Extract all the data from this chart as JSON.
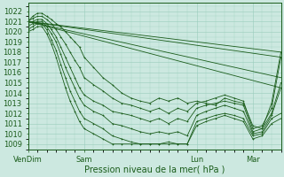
{
  "bg_color": "#cce8e0",
  "grid_color": "#99ccbb",
  "line_color": "#1a5c1a",
  "xlabel": "Pression niveau de la mer( hPa )",
  "xlabel_fontsize": 7,
  "tick_fontsize": 6,
  "ylim": [
    1008.5,
    1022.8
  ],
  "yticks": [
    1009,
    1010,
    1011,
    1012,
    1013,
    1014,
    1015,
    1016,
    1017,
    1018,
    1019,
    1020,
    1021,
    1022
  ],
  "xtick_labels": [
    "VenDim",
    "Sam",
    "Lun",
    "Mar"
  ],
  "xtick_positions": [
    0,
    48,
    144,
    192
  ],
  "xlim": [
    0,
    216
  ],
  "straight_lines": [
    {
      "x": [
        0,
        216
      ],
      "y": [
        1021.0,
        1018.0
      ]
    },
    {
      "x": [
        0,
        216
      ],
      "y": [
        1021.0,
        1017.5
      ]
    },
    {
      "x": [
        0,
        216
      ],
      "y": [
        1021.0,
        1015.5
      ]
    },
    {
      "x": [
        0,
        216
      ],
      "y": [
        1021.0,
        1014.5
      ]
    }
  ],
  "detail_lines": [
    {
      "x": [
        0,
        4,
        8,
        12,
        16,
        20,
        24,
        28,
        32,
        36,
        40,
        44,
        48,
        56,
        64,
        72,
        80,
        88,
        96,
        104,
        112,
        120,
        128,
        136,
        144,
        152,
        160,
        168,
        176,
        184,
        192,
        200,
        208,
        216
      ],
      "y": [
        1021.0,
        1021.5,
        1021.8,
        1021.8,
        1021.5,
        1021.2,
        1020.8,
        1020.5,
        1020.0,
        1019.5,
        1019.0,
        1018.5,
        1017.5,
        1016.5,
        1015.5,
        1014.8,
        1014.0,
        1013.5,
        1013.2,
        1013.0,
        1013.5,
        1013.2,
        1013.5,
        1013.0,
        1013.2,
        1013.0,
        1012.8,
        1013.5,
        1013.2,
        1013.0,
        1010.8,
        1010.5,
        1013.0,
        1018.0
      ]
    },
    {
      "x": [
        0,
        4,
        8,
        12,
        16,
        20,
        24,
        28,
        32,
        36,
        40,
        44,
        48,
        56,
        64,
        72,
        80,
        88,
        96,
        104,
        112,
        120,
        128,
        136,
        144,
        152,
        160,
        168,
        176,
        184,
        192,
        200,
        208,
        216
      ],
      "y": [
        1021.0,
        1021.3,
        1021.5,
        1021.5,
        1021.2,
        1020.8,
        1020.2,
        1019.5,
        1018.8,
        1018.0,
        1017.2,
        1016.5,
        1015.5,
        1014.8,
        1014.2,
        1013.5,
        1013.0,
        1012.8,
        1012.5,
        1012.2,
        1012.5,
        1012.0,
        1012.5,
        1012.2,
        1013.0,
        1013.2,
        1013.5,
        1013.8,
        1013.5,
        1013.2,
        1010.5,
        1010.8,
        1012.5,
        1017.5
      ]
    },
    {
      "x": [
        0,
        4,
        8,
        12,
        16,
        20,
        24,
        28,
        32,
        36,
        40,
        44,
        48,
        56,
        64,
        72,
        80,
        88,
        96,
        104,
        112,
        120,
        128,
        136,
        144,
        152,
        160,
        168,
        176,
        184,
        192,
        200,
        208,
        216
      ],
      "y": [
        1020.8,
        1021.0,
        1021.2,
        1021.2,
        1020.8,
        1020.2,
        1019.5,
        1018.5,
        1017.5,
        1016.5,
        1015.5,
        1014.5,
        1013.8,
        1013.2,
        1012.8,
        1012.2,
        1012.0,
        1011.8,
        1011.5,
        1011.2,
        1011.5,
        1011.0,
        1011.5,
        1011.2,
        1012.5,
        1012.8,
        1013.0,
        1013.2,
        1013.0,
        1012.8,
        1010.2,
        1010.5,
        1012.0,
        1015.0
      ]
    },
    {
      "x": [
        0,
        4,
        8,
        12,
        16,
        20,
        24,
        28,
        32,
        36,
        40,
        44,
        48,
        56,
        64,
        72,
        80,
        88,
        96,
        104,
        112,
        120,
        128,
        136,
        144,
        152,
        160,
        168,
        176,
        184,
        192,
        200,
        208,
        216
      ],
      "y": [
        1020.5,
        1020.8,
        1021.0,
        1021.0,
        1020.5,
        1019.8,
        1019.0,
        1017.8,
        1016.5,
        1015.5,
        1014.5,
        1013.5,
        1012.8,
        1012.2,
        1011.8,
        1011.0,
        1010.8,
        1010.5,
        1010.2,
        1010.0,
        1010.2,
        1010.0,
        1010.2,
        1009.8,
        1011.8,
        1012.2,
        1012.5,
        1012.8,
        1012.5,
        1012.2,
        1010.0,
        1010.2,
        1011.8,
        1014.5
      ]
    },
    {
      "x": [
        0,
        4,
        8,
        12,
        16,
        20,
        24,
        28,
        32,
        36,
        40,
        44,
        48,
        56,
        64,
        72,
        80,
        88,
        96,
        104,
        112,
        120,
        128,
        136,
        144,
        152,
        160,
        168,
        176,
        184,
        192,
        200,
        208,
        216
      ],
      "y": [
        1020.2,
        1020.5,
        1020.8,
        1020.8,
        1020.2,
        1019.2,
        1018.2,
        1016.8,
        1015.5,
        1014.2,
        1013.2,
        1012.2,
        1011.5,
        1011.0,
        1010.5,
        1009.8,
        1009.5,
        1009.2,
        1009.0,
        1009.0,
        1009.0,
        1009.2,
        1009.0,
        1009.0,
        1011.2,
        1011.5,
        1011.8,
        1012.0,
        1011.8,
        1011.5,
        1009.8,
        1010.0,
        1011.5,
        1012.0
      ]
    },
    {
      "x": [
        0,
        4,
        8,
        12,
        16,
        20,
        24,
        28,
        32,
        36,
        40,
        44,
        48,
        56,
        64,
        72,
        80,
        88,
        96,
        104,
        112,
        120,
        128,
        136,
        144,
        152,
        160,
        168,
        176,
        184,
        192,
        200,
        208,
        216
      ],
      "y": [
        1020.0,
        1020.2,
        1020.5,
        1020.5,
        1019.8,
        1018.8,
        1017.5,
        1016.0,
        1014.5,
        1013.2,
        1012.2,
        1011.2,
        1010.5,
        1010.0,
        1009.5,
        1009.0,
        1009.0,
        1009.0,
        1009.0,
        1009.0,
        1009.0,
        1009.0,
        1009.0,
        1009.0,
        1010.8,
        1011.2,
        1011.5,
        1011.8,
        1011.5,
        1011.2,
        1009.5,
        1009.8,
        1011.0,
        1011.5
      ]
    }
  ]
}
